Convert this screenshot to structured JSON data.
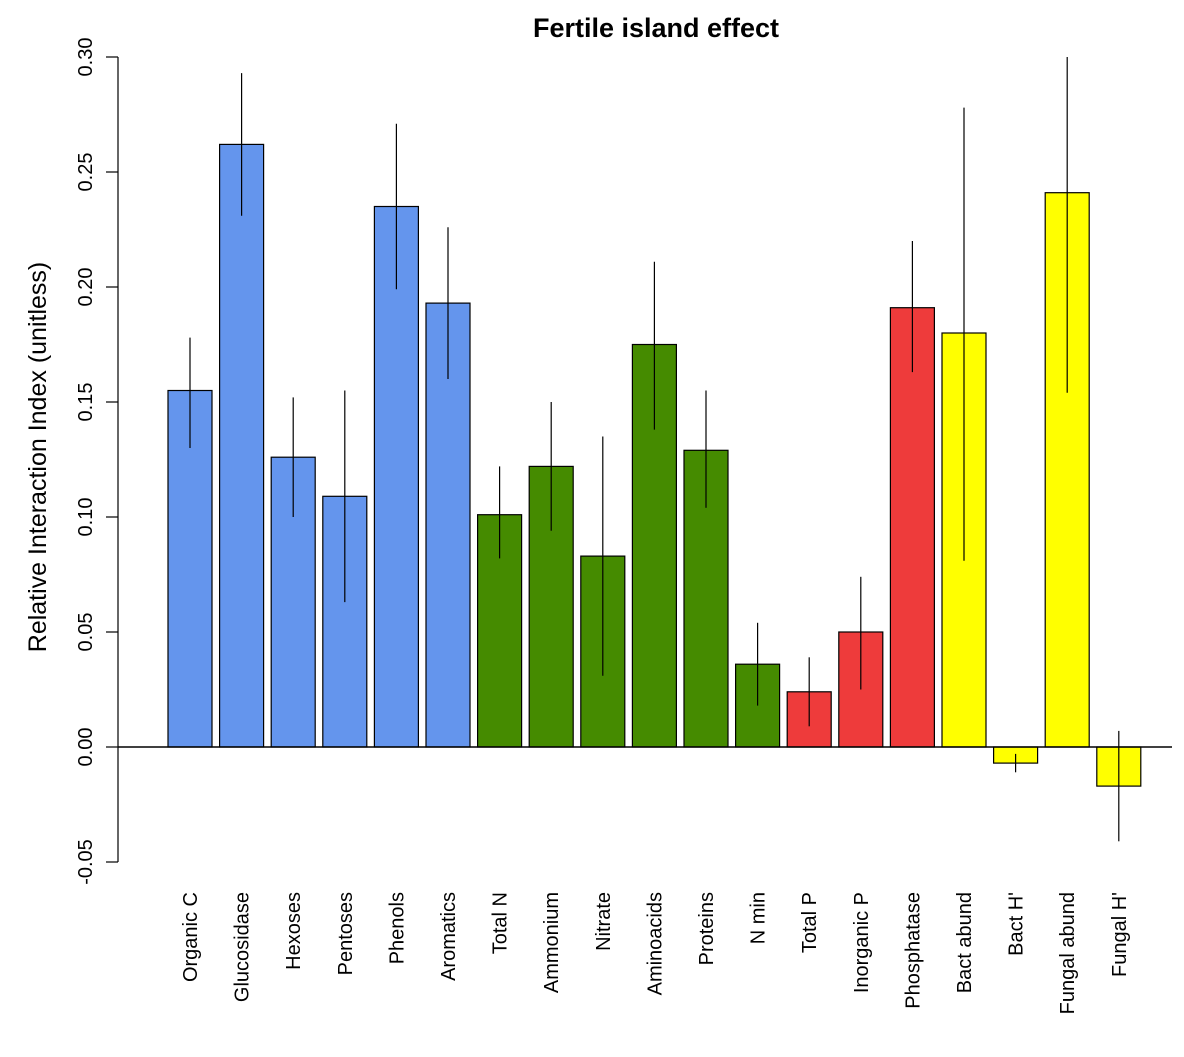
{
  "chart_data": {
    "type": "bar",
    "title": "Fertile island effect",
    "xlabel": "",
    "ylabel": "Relative Interaction Index (unitless)",
    "ylim": [
      -0.05,
      0.3
    ],
    "yticks": [
      "-0.05",
      "0.00",
      "0.05",
      "0.10",
      "0.15",
      "0.20",
      "0.25",
      "0.30"
    ],
    "grid": false,
    "error_bars": true,
    "categories": [
      "Organic C",
      "Glucosidase",
      "Hexoses",
      "Pentoses",
      "Phenols",
      "Aromatics",
      "Total N",
      "Ammonium",
      "Nitrate",
      "Aminoacids",
      "Proteins",
      "N min",
      "Total P",
      "Inorganic P",
      "Phosphatase",
      "Bact abund",
      "Bact H'",
      "Fungal abund",
      "Fungal H'"
    ],
    "values": [
      0.155,
      0.262,
      0.126,
      0.109,
      0.235,
      0.193,
      0.101,
      0.122,
      0.083,
      0.175,
      0.129,
      0.036,
      0.024,
      0.05,
      0.191,
      0.18,
      -0.007,
      0.241,
      -0.017
    ],
    "error_low": [
      0.13,
      0.231,
      0.1,
      0.063,
      0.199,
      0.16,
      0.082,
      0.094,
      0.031,
      0.138,
      0.104,
      0.018,
      0.009,
      0.025,
      0.163,
      0.081,
      -0.011,
      0.154,
      -0.041
    ],
    "error_high": [
      0.178,
      0.293,
      0.152,
      0.155,
      0.271,
      0.226,
      0.122,
      0.15,
      0.135,
      0.211,
      0.155,
      0.054,
      0.039,
      0.074,
      0.22,
      0.278,
      -0.003,
      0.3,
      0.007
    ],
    "colors": [
      "#6495ed",
      "#6495ed",
      "#6495ed",
      "#6495ed",
      "#6495ed",
      "#6495ed",
      "#458b00",
      "#458b00",
      "#458b00",
      "#458b00",
      "#458b00",
      "#458b00",
      "#ee3b3b",
      "#ee3b3b",
      "#ee3b3b",
      "#ffff00",
      "#ffff00",
      "#ffff00",
      "#ffff00"
    ]
  }
}
